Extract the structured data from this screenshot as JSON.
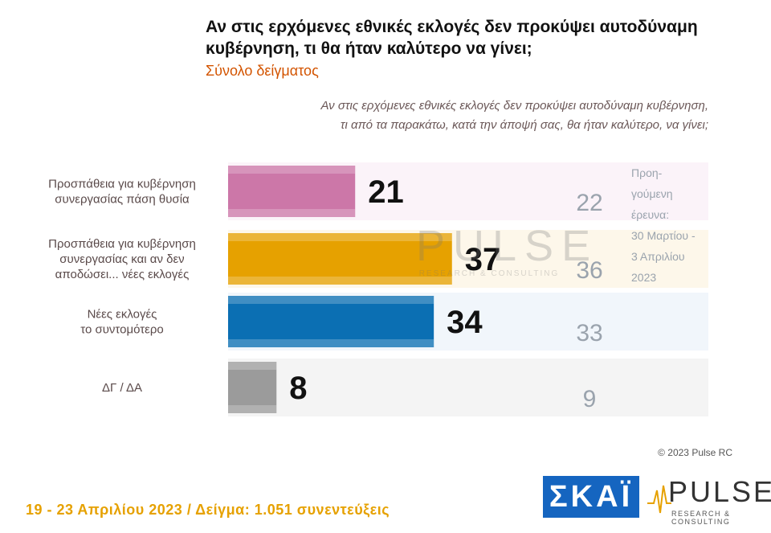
{
  "header": {
    "title": "Αν στις ερχόμενες εθνικές εκλογές δεν προκύψει αυτοδύναμη κυβέρνηση, τι θα ήταν καλύτερο να γίνει;",
    "subtitle": "Σύνολο δείγματος",
    "question_line1": "Αν στις ερχόμενες εθνικές εκλογές δεν προκύψει αυτοδύναμη κυβέρνηση,",
    "question_line2": "τι από τα παρακάτω, κατά την άποψή σας, θα ήταν καλύτερο, να γίνει;"
  },
  "watermark": {
    "big": "PULSE",
    "small": "RESEARCH & CONSULTING"
  },
  "prev_note": {
    "lines": [
      "Προη-",
      "γούμενη",
      "έρευνα:",
      "30 Μαρτίου -",
      "3 Απριλίου",
      "2023"
    ]
  },
  "chart_data": {
    "type": "bar",
    "orientation": "horizontal",
    "categories": [
      [
        "Προσπάθεια για κυβέρνηση",
        "συνεργασίας πάση θυσία"
      ],
      [
        "Προσπάθεια για κυβέρνηση",
        "συνεργασίας και αν δεν",
        "αποδώσει... νέες εκλογές"
      ],
      [
        "Νέες εκλογές",
        "το συντομότερο"
      ],
      [
        "ΔΓ / ΔΑ"
      ]
    ],
    "values": [
      21,
      37,
      34,
      8
    ],
    "previous_values": [
      22,
      36,
      33,
      9
    ],
    "colors": [
      "#cc77a8",
      "#e6a100",
      "#0b6fb3",
      "#9b9b9b"
    ],
    "bg_colors": [
      "#fbf3f9",
      "#fdf7ea",
      "#f1f6fb",
      "#f4f4f4"
    ],
    "xlim": [
      0,
      100
    ]
  },
  "footer": {
    "copyright": "© 2023 Pulse RC",
    "fieldwork": "19 - 23 Απριλίου 2023 / Δείγμα: 1.051 συνεντεύξεις"
  },
  "logos": {
    "skai": "ΣΚΑΪ",
    "pulse_name": "PULSE",
    "pulse_sub": "RESEARCH & CONSULTING"
  }
}
